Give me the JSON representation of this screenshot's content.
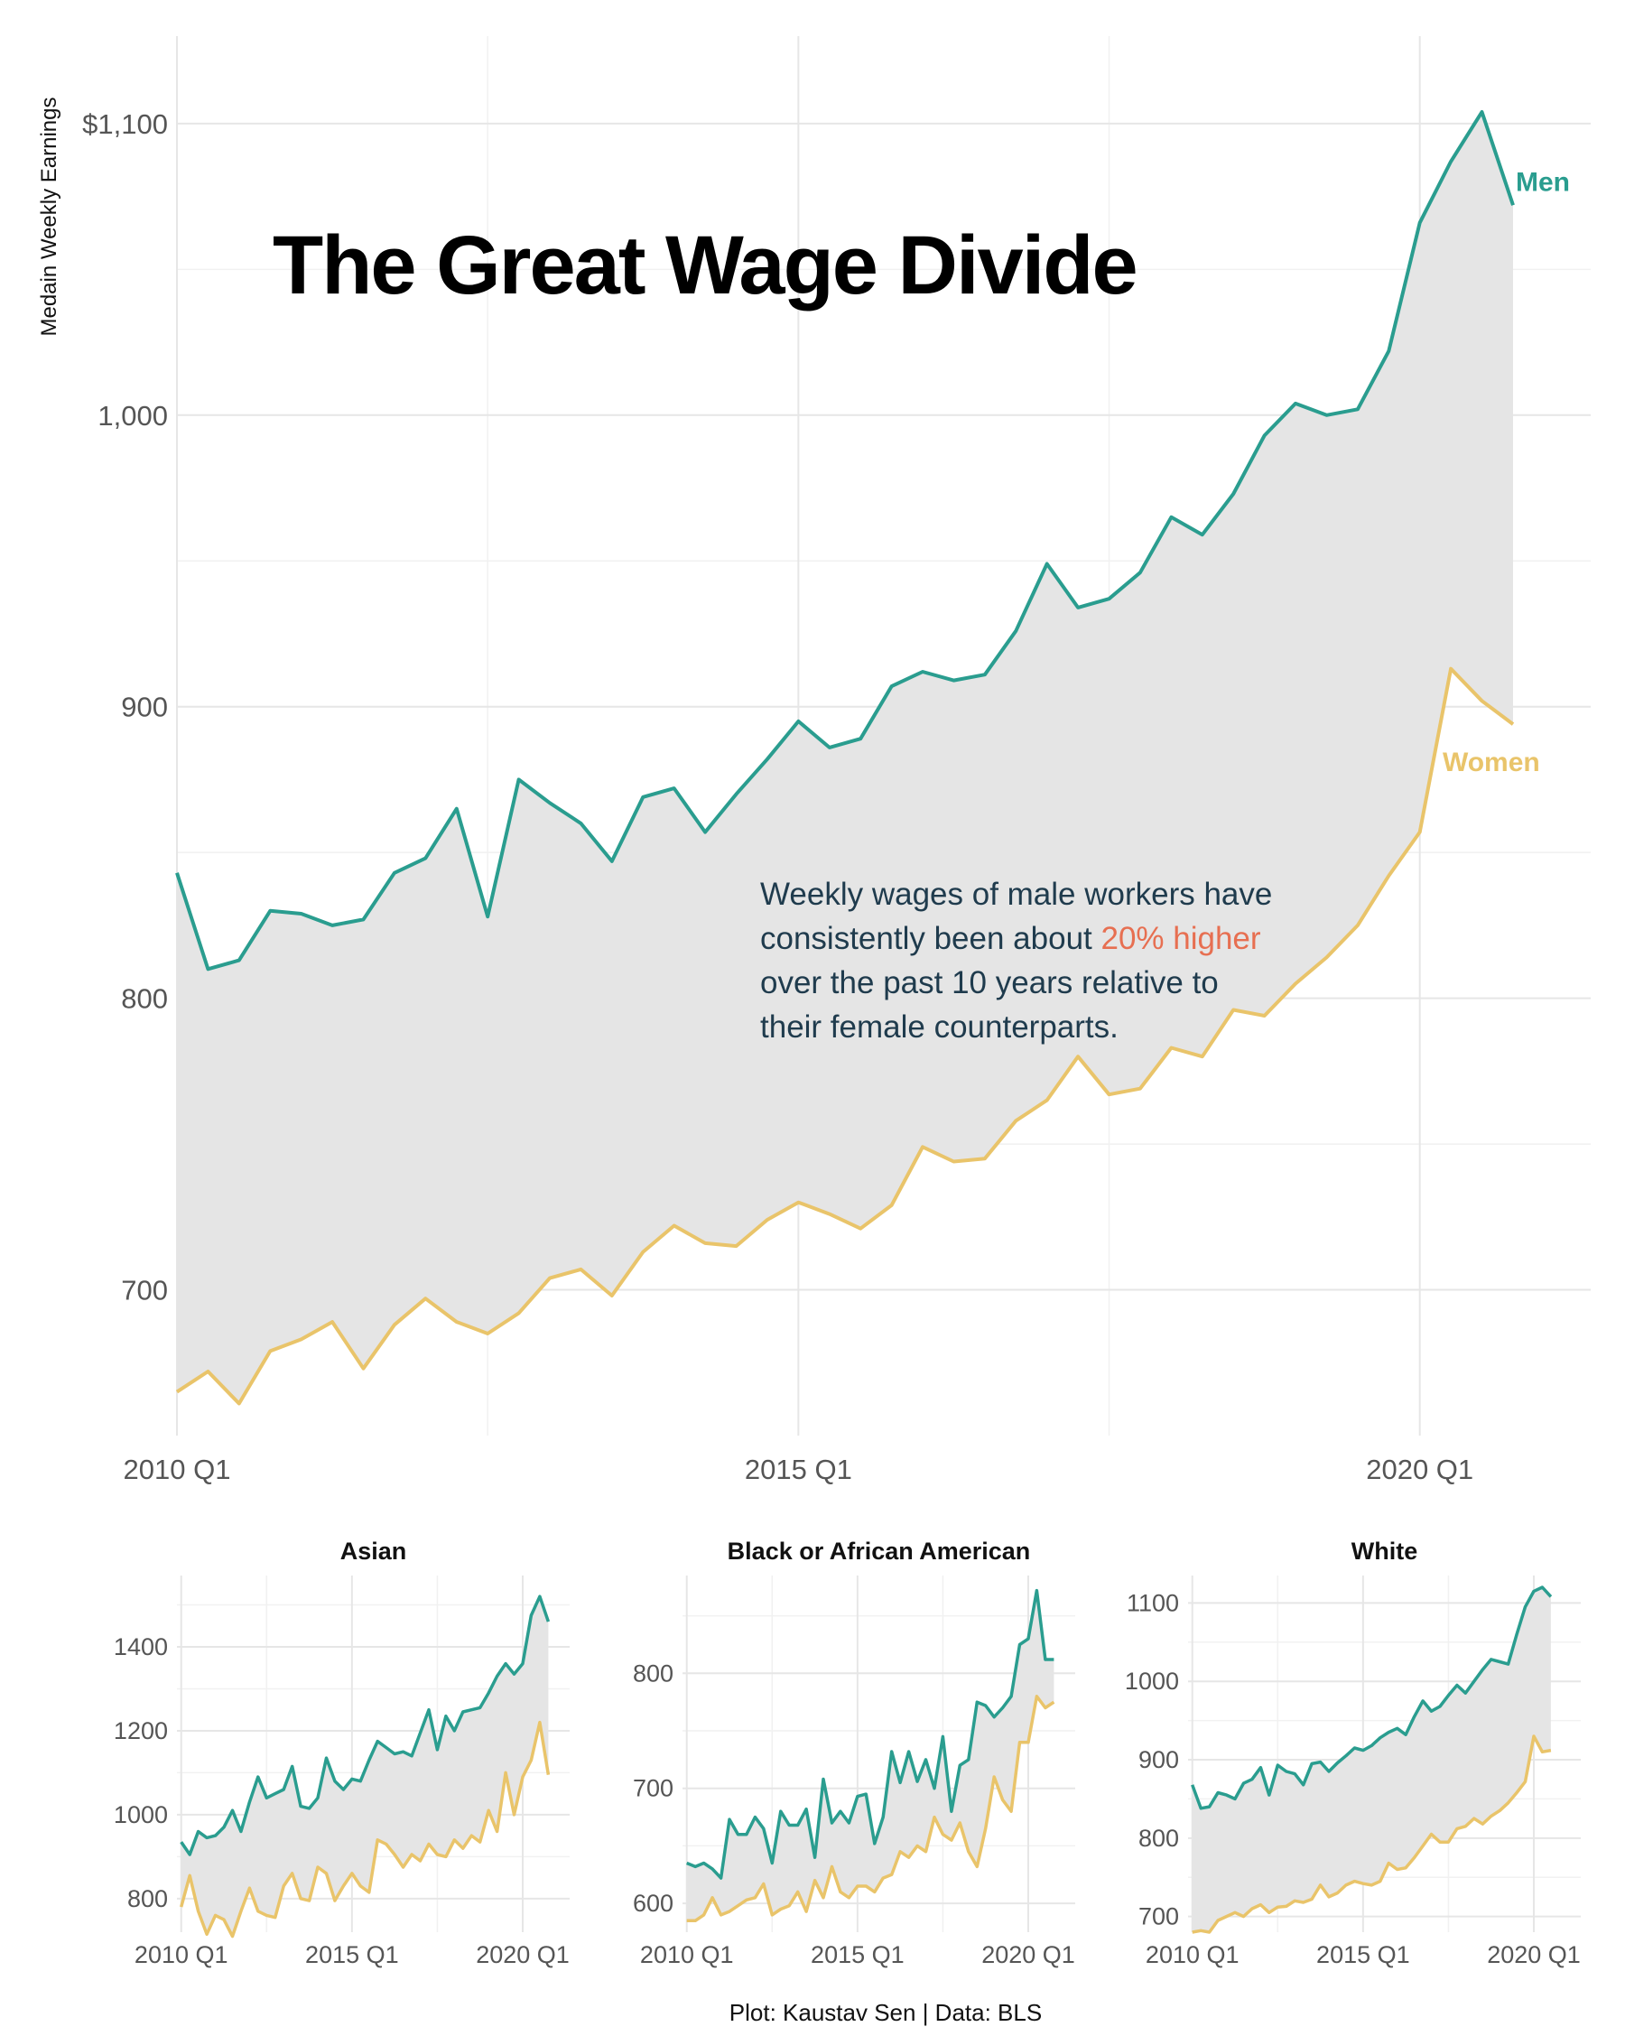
{
  "colors": {
    "men": "#2a9d8f",
    "women": "#e9c46a",
    "gap_fill": "#e5e5e5",
    "highlight": "#e76f51",
    "annotation": "#1f3b4d"
  },
  "title": "The Great Wage Divide",
  "caption": "Plot: Kaustav Sen | Data: BLS",
  "annotation": {
    "lines": [
      [
        "Weekly wages of male workers have"
      ],
      [
        "consistently been about ",
        "20% higher"
      ],
      [
        "over the past 10 years relative to"
      ],
      [
        "their female counterparts."
      ]
    ]
  },
  "chart_data": [
    {
      "type": "area",
      "panel": "main",
      "ylabel": "Medain Weekly Earnings",
      "ylim": [
        650,
        1130
      ],
      "yticks": [
        700,
        800,
        900,
        1000,
        1100
      ],
      "ytick_labels": [
        "700",
        "800",
        "900",
        "1,000",
        "$1,100"
      ],
      "xlim": [
        0,
        45.5
      ],
      "xticks": [
        0,
        20,
        40
      ],
      "xtick_labels": [
        "2010 Q1",
        "2015 Q1",
        "2020 Q1"
      ],
      "x_start_label": "2010 Q1",
      "grid": true,
      "series": [
        {
          "name": "Men",
          "values": [
            843,
            810,
            813,
            830,
            829,
            825,
            827,
            843,
            848,
            865,
            828,
            875,
            867,
            860,
            847,
            869,
            872,
            857,
            870,
            882,
            895,
            886,
            889,
            907,
            912,
            909,
            911,
            926,
            949,
            934,
            937,
            946,
            965,
            959,
            973,
            993,
            1004,
            1000,
            1002,
            1022,
            1066,
            1087,
            1104,
            1072
          ]
        },
        {
          "name": "Women",
          "values": [
            665,
            672,
            661,
            679,
            683,
            689,
            673,
            688,
            697,
            689,
            685,
            692,
            704,
            707,
            698,
            713,
            722,
            716,
            715,
            724,
            730,
            726,
            721,
            729,
            749,
            744,
            745,
            758,
            765,
            780,
            767,
            769,
            783,
            780,
            796,
            794,
            805,
            814,
            825,
            842,
            857,
            913,
            902,
            894
          ]
        }
      ]
    },
    {
      "type": "area",
      "panel": "Asian",
      "title": "Asian",
      "ylim": [
        720,
        1570
      ],
      "yticks": [
        800,
        1000,
        1200,
        1400
      ],
      "ytick_labels": [
        "800",
        "1000",
        "1200",
        "1400"
      ],
      "xlim": [
        -0.5,
        45.5
      ],
      "xticks": [
        0,
        20,
        40
      ],
      "xtick_labels": [
        "2010 Q1",
        "2015 Q1",
        "2020 Q1"
      ],
      "series": [
        {
          "name": "Men",
          "values": [
            935,
            905,
            960,
            945,
            950,
            970,
            1010,
            960,
            1030,
            1090,
            1040,
            1050,
            1060,
            1115,
            1020,
            1015,
            1040,
            1135,
            1080,
            1060,
            1085,
            1080,
            1130,
            1175,
            1160,
            1145,
            1150,
            1140,
            1195,
            1250,
            1155,
            1235,
            1200,
            1245,
            1250,
            1255,
            1290,
            1330,
            1360,
            1335,
            1360,
            1475,
            1520,
            1460
          ]
        },
        {
          "name": "Women",
          "values": [
            780,
            855,
            770,
            715,
            760,
            750,
            710,
            770,
            825,
            770,
            760,
            755,
            830,
            860,
            800,
            795,
            875,
            860,
            795,
            830,
            860,
            830,
            815,
            940,
            930,
            905,
            875,
            905,
            890,
            930,
            905,
            900,
            940,
            920,
            950,
            935,
            1010,
            960,
            1100,
            1000,
            1090,
            1130,
            1220,
            1095
          ]
        }
      ]
    },
    {
      "type": "area",
      "panel": "Black or African American",
      "title": "Black or African American",
      "ylim": [
        575,
        885
      ],
      "yticks": [
        600,
        700,
        800
      ],
      "ytick_labels": [
        "600",
        "700",
        "800"
      ],
      "xlim": [
        -0.5,
        45.5
      ],
      "xticks": [
        0,
        20,
        40
      ],
      "xtick_labels": [
        "2010 Q1",
        "2015 Q1",
        "2020 Q1"
      ],
      "series": [
        {
          "name": "Men",
          "values": [
            635,
            632,
            635,
            630,
            622,
            673,
            660,
            660,
            675,
            665,
            635,
            680,
            668,
            668,
            682,
            640,
            708,
            670,
            680,
            670,
            693,
            695,
            652,
            675,
            732,
            705,
            732,
            706,
            725,
            700,
            745,
            680,
            720,
            725,
            775,
            772,
            762,
            770,
            780,
            825,
            830,
            872,
            812,
            812
          ]
        },
        {
          "name": "Women",
          "values": [
            585,
            585,
            590,
            605,
            590,
            593,
            598,
            603,
            605,
            617,
            590,
            595,
            598,
            610,
            593,
            620,
            605,
            632,
            610,
            605,
            615,
            615,
            610,
            622,
            625,
            645,
            640,
            650,
            645,
            675,
            660,
            655,
            670,
            645,
            632,
            665,
            710,
            690,
            680,
            740,
            740,
            780,
            770,
            775
          ]
        }
      ]
    },
    {
      "type": "area",
      "panel": "White",
      "title": "White",
      "ylim": [
        680,
        1135
      ],
      "yticks": [
        700,
        800,
        900,
        1000,
        1100
      ],
      "ytick_labels": [
        "700",
        "800",
        "900",
        "1000",
        "1100"
      ],
      "xlim": [
        -0.5,
        45.5
      ],
      "xticks": [
        0,
        20,
        40
      ],
      "xtick_labels": [
        "2010 Q1",
        "2015 Q1",
        "2020 Q1"
      ],
      "series": [
        {
          "name": "Men",
          "values": [
            868,
            838,
            840,
            858,
            855,
            850,
            870,
            875,
            890,
            855,
            893,
            885,
            882,
            868,
            895,
            897,
            885,
            896,
            905,
            915,
            912,
            918,
            928,
            935,
            940,
            932,
            955,
            975,
            962,
            968,
            982,
            995,
            985,
            1000,
            1015,
            1028,
            1025,
            1022,
            1060,
            1095,
            1115,
            1120,
            1108
          ]
        },
        {
          "name": "Women",
          "values": [
            680,
            682,
            680,
            695,
            700,
            705,
            700,
            710,
            715,
            705,
            712,
            713,
            720,
            718,
            722,
            740,
            725,
            730,
            740,
            745,
            742,
            740,
            745,
            768,
            760,
            762,
            775,
            790,
            805,
            795,
            795,
            812,
            815,
            825,
            818,
            828,
            835,
            845,
            858,
            872,
            930,
            910,
            912
          ]
        }
      ]
    }
  ]
}
